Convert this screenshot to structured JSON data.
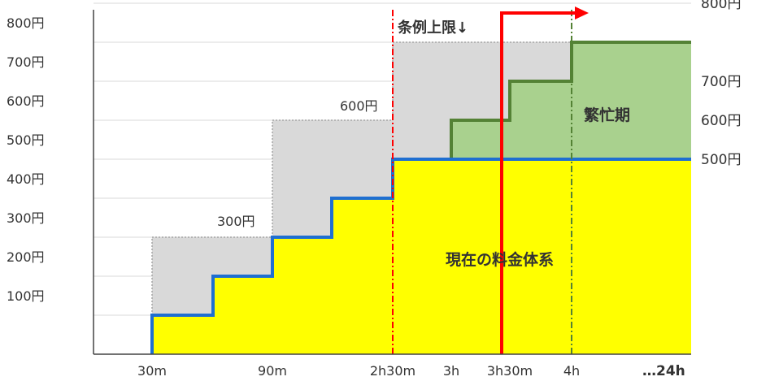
{
  "chart_data": {
    "type": "line",
    "title": "",
    "xlabel": "",
    "ylabel": "",
    "x_ticks": [
      "30m",
      "90m",
      "2h30m",
      "3h",
      "3h30m",
      "4h",
      "…24h"
    ],
    "y_ticks": [
      "100円",
      "200円",
      "300円",
      "400円",
      "500円",
      "600円",
      "700円",
      "800円"
    ],
    "right_labels": [
      "800円",
      "700円",
      "600円",
      "500円"
    ],
    "ylim": [
      0,
      800
    ],
    "grid": true,
    "series": [
      {
        "name": "現在の料金体系",
        "color": "#1f6fd1",
        "fill": "#ffff00",
        "points": [
          [
            30,
            0
          ],
          [
            30,
            100
          ],
          [
            60,
            100
          ],
          [
            60,
            200
          ],
          [
            90,
            200
          ],
          [
            90,
            300
          ],
          [
            120,
            300
          ],
          [
            120,
            400
          ],
          [
            150,
            400
          ],
          [
            150,
            500
          ],
          [
            280,
            500
          ]
        ]
      },
      {
        "name": "繁忙期",
        "color": "#548235",
        "fill": "#a9d18e",
        "points": [
          [
            180,
            500
          ],
          [
            180,
            600
          ],
          [
            210,
            600
          ],
          [
            210,
            700
          ],
          [
            240,
            700
          ],
          [
            240,
            800
          ],
          [
            280,
            800
          ]
        ]
      },
      {
        "name": "",
        "color": "#a6a6a6",
        "fill": "#d9d9d9",
        "points": [
          [
            30,
            0
          ],
          [
            30,
            300
          ],
          [
            90,
            300
          ],
          [
            90,
            600
          ],
          [
            150,
            600
          ],
          [
            150,
            800
          ],
          [
            240,
            800
          ]
        ]
      }
    ],
    "reference_lines": [
      {
        "x": 150,
        "label": "条例上限↓",
        "color": "#ff0000"
      },
      {
        "x": 240,
        "label": "",
        "color": "#548235"
      }
    ],
    "annotations": [
      "300円",
      "600円"
    ],
    "region_labels": [
      "現在の料金体系",
      "繁忙期"
    ]
  }
}
